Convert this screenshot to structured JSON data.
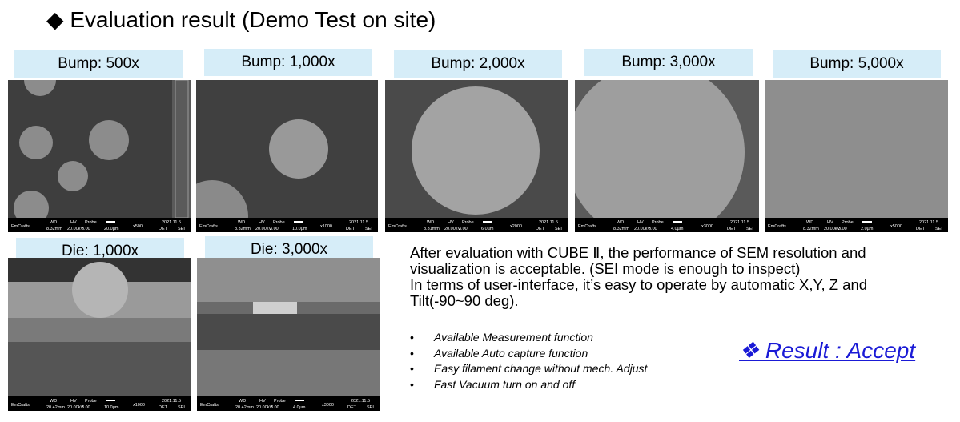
{
  "title": "◆ Evaluation result (Demo Test on site)",
  "info_headers": [
    "WD",
    "HV",
    "Probe"
  ],
  "info_brand": "EmCrafts",
  "info_date": "2021.11.5",
  "info_detector": [
    "DET",
    "SEI"
  ],
  "panels": [
    {
      "label": "Bump: 500x",
      "wd": "8.32mm",
      "hv": "20.00kV",
      "probe": "3.00",
      "scale": "20.0µm",
      "mag": "x500"
    },
    {
      "label": "Bump: 1,000x",
      "wd": "8.32mm",
      "hv": "20.00kV",
      "probe": "3.00",
      "scale": "10.0µm",
      "mag": "x1000"
    },
    {
      "label": "Bump: 2,000x",
      "wd": "8.31mm",
      "hv": "20.00kV",
      "probe": "3.00",
      "scale": "6.0µm",
      "mag": "x2000"
    },
    {
      "label": "Bump: 3,000x",
      "wd": "8.32mm",
      "hv": "20.00kV",
      "probe": "3.00",
      "scale": "4.0µm",
      "mag": "x3000"
    },
    {
      "label": "Bump: 5,000x",
      "wd": "8.32mm",
      "hv": "20.00kV",
      "probe": "3.00",
      "scale": "2.0µm",
      "mag": "x5000"
    },
    {
      "label": "Die: 1,000x",
      "wd": "20.42mm",
      "hv": "20.00kV",
      "probe": "3.00",
      "scale": "10.0µm",
      "mag": "x1000"
    },
    {
      "label": "Die: 3,000x",
      "wd": "20.42mm",
      "hv": "20.00kV",
      "probe": "3.00",
      "scale": "4.0µm",
      "mag": "x3000"
    }
  ],
  "summary": [
    "After evaluation with CUBE Ⅱ, the performance of SEM resolution and visualization is acceptable. (SEI mode is enough to inspect)",
    "In terms of user-interface, it’s easy to operate  by automatic X,Y, Z and Tilt(-90~90 deg)."
  ],
  "bullet_symbol": "•",
  "bullets": [
    "Available Measurement function",
    "Available Auto capture function",
    "Easy filament change without mech. Adjust",
    "Fast Vacuum turn on and off"
  ],
  "result": "❖ Result : Accept"
}
